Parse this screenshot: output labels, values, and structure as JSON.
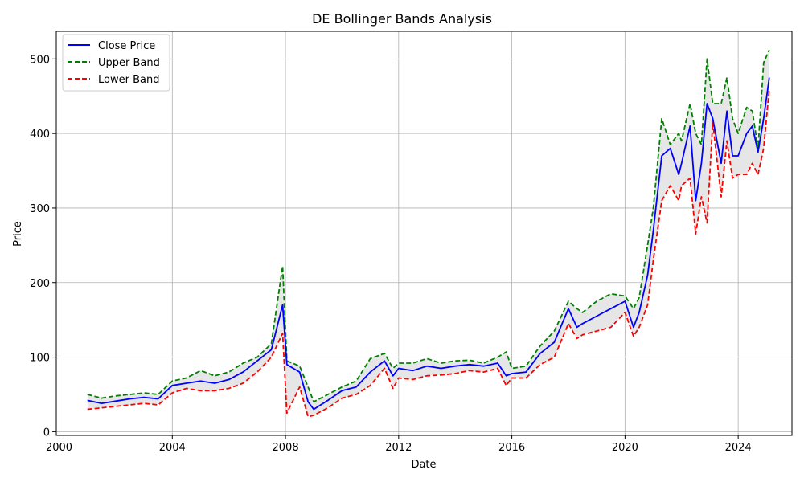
{
  "chart_data": {
    "type": "line",
    "title": "DE Bollinger Bands Analysis",
    "xlabel": "Date",
    "ylabel": "Price",
    "xlim": [
      1999.9,
      2025.9
    ],
    "ylim": [
      -5,
      537
    ],
    "x_ticks": [
      2000,
      2004,
      2008,
      2012,
      2016,
      2020,
      2024
    ],
    "y_ticks": [
      0,
      100,
      200,
      300,
      400,
      500
    ],
    "grid": true,
    "legend_position": "top-left",
    "band_fill_color": "#e6e6e6",
    "x": [
      2001.0,
      2001.5,
      2002.0,
      2002.5,
      2003.0,
      2003.5,
      2004.0,
      2004.5,
      2005.0,
      2005.5,
      2006.0,
      2006.5,
      2007.0,
      2007.5,
      2007.9,
      2008.05,
      2008.5,
      2008.8,
      2009.0,
      2009.5,
      2010.0,
      2010.5,
      2011.0,
      2011.5,
      2011.8,
      2012.0,
      2012.5,
      2013.0,
      2013.5,
      2014.0,
      2014.5,
      2015.0,
      2015.5,
      2015.8,
      2016.0,
      2016.5,
      2017.0,
      2017.5,
      2018.0,
      2018.3,
      2018.5,
      2019.0,
      2019.5,
      2020.0,
      2020.3,
      2020.5,
      2020.8,
      2021.0,
      2021.3,
      2021.6,
      2021.9,
      2022.0,
      2022.3,
      2022.5,
      2022.7,
      2022.9,
      2023.1,
      2023.4,
      2023.6,
      2023.8,
      2024.0,
      2024.3,
      2024.5,
      2024.7,
      2024.9,
      2025.1
    ],
    "series": [
      {
        "name": "Close Price",
        "color": "#0000ff",
        "style": "solid",
        "values": [
          42,
          38,
          41,
          44,
          46,
          44,
          62,
          65,
          68,
          65,
          70,
          80,
          95,
          110,
          170,
          90,
          80,
          40,
          30,
          42,
          55,
          60,
          80,
          95,
          75,
          85,
          82,
          88,
          85,
          88,
          90,
          88,
          92,
          75,
          78,
          80,
          105,
          120,
          165,
          140,
          145,
          155,
          165,
          175,
          140,
          160,
          210,
          270,
          370,
          380,
          345,
          360,
          410,
          310,
          360,
          440,
          420,
          360,
          430,
          370,
          370,
          400,
          410,
          375,
          420,
          475
        ]
      },
      {
        "name": "Upper Band",
        "color": "#008000",
        "style": "dashed",
        "values": [
          50,
          45,
          48,
          50,
          52,
          50,
          68,
          72,
          82,
          75,
          80,
          92,
          100,
          118,
          222,
          95,
          88,
          60,
          40,
          50,
          60,
          68,
          98,
          105,
          85,
          92,
          92,
          98,
          92,
          95,
          96,
          92,
          100,
          107,
          85,
          88,
          115,
          135,
          175,
          165,
          160,
          175,
          185,
          182,
          165,
          180,
          250,
          300,
          420,
          385,
          400,
          390,
          440,
          400,
          385,
          500,
          440,
          440,
          475,
          420,
          400,
          435,
          430,
          380,
          495,
          512
        ]
      },
      {
        "name": "Lower Band",
        "color": "#ff0000",
        "style": "dashed",
        "values": [
          30,
          32,
          34,
          36,
          38,
          36,
          52,
          58,
          55,
          55,
          58,
          65,
          80,
          100,
          132,
          25,
          60,
          20,
          22,
          32,
          45,
          50,
          62,
          85,
          58,
          72,
          70,
          75,
          76,
          78,
          82,
          80,
          85,
          62,
          72,
          72,
          90,
          100,
          145,
          125,
          130,
          135,
          140,
          160,
          128,
          140,
          170,
          230,
          310,
          330,
          310,
          330,
          340,
          265,
          315,
          280,
          415,
          315,
          390,
          340,
          345,
          345,
          360,
          345,
          380,
          460
        ]
      }
    ]
  }
}
